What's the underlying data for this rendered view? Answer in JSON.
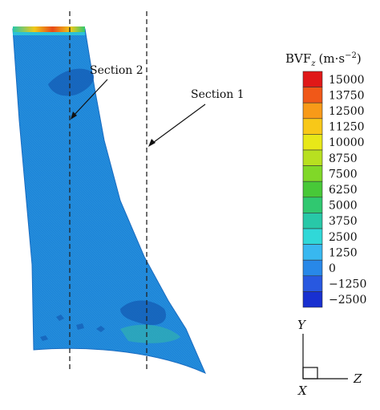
{
  "figure": {
    "section_labels": {
      "section1": "Section 1",
      "section2": "Section 2"
    },
    "colorbar": {
      "title_main": "BVF",
      "title_sub": "z",
      "title_units_prefix": "(m·s",
      "title_units_exp": "−2",
      "title_units_suffix": ")",
      "ticks": [
        "15000",
        "13750",
        "12500",
        "11250",
        "10000",
        "8750",
        "7500",
        "6250",
        "5000",
        "3750",
        "2500",
        "1250",
        "0",
        "−1250",
        "−2500"
      ],
      "colors": [
        "#e01818",
        "#f05818",
        "#f89a18",
        "#f8c818",
        "#e8e818",
        "#b8e020",
        "#80d828",
        "#48c838",
        "#30c870",
        "#28c8a8",
        "#30d8d8",
        "#38b8f0",
        "#2888e8",
        "#2858e0",
        "#1830d0"
      ]
    },
    "axes": {
      "y_label": "Y",
      "z_label": "Z",
      "x_label": "X"
    },
    "colors": {
      "blade_base": "#1e86d8",
      "blade_dark": "#1560b8",
      "top_edge": "#e84a18",
      "dashed_line": "#222222"
    }
  }
}
